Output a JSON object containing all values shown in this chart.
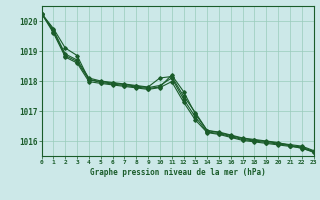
{
  "title": "Graphe pression niveau de la mer (hPa)",
  "xlim": [
    0,
    23
  ],
  "ylim": [
    1015.5,
    1020.5
  ],
  "yticks": [
    1016,
    1017,
    1018,
    1019,
    1020
  ],
  "xticks": [
    0,
    1,
    2,
    3,
    4,
    5,
    6,
    7,
    8,
    9,
    10,
    11,
    12,
    13,
    14,
    15,
    16,
    17,
    18,
    19,
    20,
    21,
    22,
    23
  ],
  "background_color": "#cce8e8",
  "grid_color": "#99ccbb",
  "line_color": "#1a5c2a",
  "series": [
    [
      1020.25,
      1019.75,
      1019.1,
      1018.85,
      1018.05,
      1017.95,
      1017.9,
      1017.85,
      1017.8,
      1017.75,
      1017.8,
      1018.2,
      1017.65,
      1016.9,
      1016.35,
      1016.3,
      1016.2,
      1016.1,
      1016.05,
      1016.0,
      1015.95,
      1015.85,
      1015.75,
      1015.65
    ],
    [
      1020.25,
      1019.7,
      1018.9,
      1018.7,
      1018.1,
      1018.0,
      1017.95,
      1017.9,
      1017.85,
      1017.8,
      1018.1,
      1018.15,
      1017.5,
      1016.95,
      1016.35,
      1016.28,
      1016.18,
      1016.08,
      1016.03,
      1015.98,
      1015.93,
      1015.88,
      1015.83,
      1015.68
    ],
    [
      1020.25,
      1019.65,
      1018.85,
      1018.65,
      1018.05,
      1017.98,
      1017.93,
      1017.88,
      1017.83,
      1017.78,
      1017.85,
      1018.1,
      1017.4,
      1016.8,
      1016.3,
      1016.25,
      1016.15,
      1016.05,
      1016.0,
      1015.95,
      1015.9,
      1015.85,
      1015.8,
      1015.65
    ],
    [
      1020.25,
      1019.6,
      1018.8,
      1018.6,
      1017.98,
      1017.92,
      1017.87,
      1017.82,
      1017.77,
      1017.72,
      1017.78,
      1017.98,
      1017.3,
      1016.7,
      1016.28,
      1016.22,
      1016.12,
      1016.02,
      1015.97,
      1015.92,
      1015.87,
      1015.82,
      1015.77,
      1015.62
    ]
  ]
}
